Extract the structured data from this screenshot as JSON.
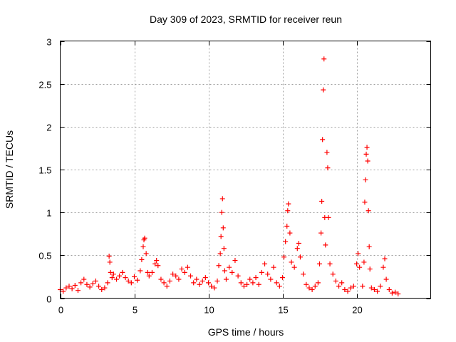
{
  "chart_data": {
    "type": "scatter",
    "title": "Day 309 of 2023, SRMTID for receiver reun",
    "xlabel": "GPS time / hours",
    "ylabel": "SRMTID / TECUs",
    "xlim": [
      0,
      25
    ],
    "ylim": [
      0,
      3
    ],
    "xticks": [
      0,
      5,
      10,
      15,
      20
    ],
    "xtick_labels": [
      "0",
      "5",
      "10",
      "15",
      "20"
    ],
    "yticks": [
      0,
      0.5,
      1,
      1.5,
      2,
      2.5,
      3
    ],
    "ytick_labels": [
      "0",
      "0.5",
      "1",
      "1.5",
      "2",
      "2.5",
      "3"
    ],
    "grid": true,
    "marker": "+",
    "marker_color": "#ff0000",
    "series": [
      {
        "name": "SRMTID",
        "points": [
          [
            0.0,
            0.1
          ],
          [
            0.2,
            0.08
          ],
          [
            0.4,
            0.12
          ],
          [
            0.6,
            0.14
          ],
          [
            0.8,
            0.11
          ],
          [
            1.0,
            0.15
          ],
          [
            1.2,
            0.09
          ],
          [
            1.4,
            0.18
          ],
          [
            1.6,
            0.22
          ],
          [
            1.8,
            0.16
          ],
          [
            2.0,
            0.13
          ],
          [
            2.2,
            0.17
          ],
          [
            2.4,
            0.2
          ],
          [
            2.6,
            0.14
          ],
          [
            2.8,
            0.1
          ],
          [
            3.0,
            0.12
          ],
          [
            3.2,
            0.18
          ],
          [
            3.3,
            0.49
          ],
          [
            3.35,
            0.42
          ],
          [
            3.4,
            0.3
          ],
          [
            3.5,
            0.24
          ],
          [
            3.6,
            0.28
          ],
          [
            3.8,
            0.22
          ],
          [
            4.0,
            0.26
          ],
          [
            4.2,
            0.3
          ],
          [
            4.4,
            0.24
          ],
          [
            4.6,
            0.2
          ],
          [
            4.8,
            0.18
          ],
          [
            5.0,
            0.25
          ],
          [
            5.2,
            0.21
          ],
          [
            5.4,
            0.32
          ],
          [
            5.5,
            0.45
          ],
          [
            5.6,
            0.6
          ],
          [
            5.65,
            0.68
          ],
          [
            5.7,
            0.7
          ],
          [
            5.8,
            0.52
          ],
          [
            5.9,
            0.3
          ],
          [
            6.0,
            0.26
          ],
          [
            6.2,
            0.3
          ],
          [
            6.4,
            0.4
          ],
          [
            6.5,
            0.44
          ],
          [
            6.6,
            0.38
          ],
          [
            6.8,
            0.22
          ],
          [
            7.0,
            0.18
          ],
          [
            7.2,
            0.14
          ],
          [
            7.4,
            0.2
          ],
          [
            7.6,
            0.28
          ],
          [
            7.8,
            0.26
          ],
          [
            8.0,
            0.22
          ],
          [
            8.2,
            0.34
          ],
          [
            8.4,
            0.3
          ],
          [
            8.6,
            0.36
          ],
          [
            8.8,
            0.26
          ],
          [
            9.0,
            0.18
          ],
          [
            9.2,
            0.22
          ],
          [
            9.4,
            0.16
          ],
          [
            9.6,
            0.2
          ],
          [
            9.8,
            0.24
          ],
          [
            10.0,
            0.18
          ],
          [
            10.2,
            0.14
          ],
          [
            10.4,
            0.12
          ],
          [
            10.6,
            0.2
          ],
          [
            10.7,
            0.38
          ],
          [
            10.8,
            0.52
          ],
          [
            10.85,
            0.72
          ],
          [
            10.9,
            1.0
          ],
          [
            10.95,
            1.16
          ],
          [
            11.0,
            0.82
          ],
          [
            11.05,
            0.58
          ],
          [
            11.1,
            0.32
          ],
          [
            11.2,
            0.22
          ],
          [
            11.4,
            0.36
          ],
          [
            11.6,
            0.3
          ],
          [
            11.8,
            0.44
          ],
          [
            12.0,
            0.26
          ],
          [
            12.2,
            0.18
          ],
          [
            12.4,
            0.14
          ],
          [
            12.6,
            0.16
          ],
          [
            12.8,
            0.22
          ],
          [
            13.0,
            0.18
          ],
          [
            13.2,
            0.24
          ],
          [
            13.4,
            0.16
          ],
          [
            13.6,
            0.3
          ],
          [
            13.8,
            0.4
          ],
          [
            14.0,
            0.28
          ],
          [
            14.2,
            0.22
          ],
          [
            14.4,
            0.36
          ],
          [
            14.6,
            0.18
          ],
          [
            14.8,
            0.14
          ],
          [
            15.0,
            0.24
          ],
          [
            15.1,
            0.48
          ],
          [
            15.2,
            0.66
          ],
          [
            15.3,
            0.84
          ],
          [
            15.35,
            1.02
          ],
          [
            15.4,
            1.1
          ],
          [
            15.5,
            0.76
          ],
          [
            15.6,
            0.42
          ],
          [
            15.8,
            0.36
          ],
          [
            16.0,
            0.58
          ],
          [
            16.1,
            0.64
          ],
          [
            16.2,
            0.48
          ],
          [
            16.4,
            0.28
          ],
          [
            16.6,
            0.16
          ],
          [
            16.8,
            0.12
          ],
          [
            17.0,
            0.1
          ],
          [
            17.2,
            0.14
          ],
          [
            17.4,
            0.18
          ],
          [
            17.5,
            0.4
          ],
          [
            17.6,
            0.76
          ],
          [
            17.65,
            1.13
          ],
          [
            17.7,
            1.85
          ],
          [
            17.75,
            2.43
          ],
          [
            17.8,
            2.79
          ],
          [
            17.85,
            0.94
          ],
          [
            17.9,
            0.62
          ],
          [
            18.0,
            1.7
          ],
          [
            18.05,
            1.52
          ],
          [
            18.1,
            0.94
          ],
          [
            18.2,
            0.4
          ],
          [
            18.4,
            0.28
          ],
          [
            18.6,
            0.2
          ],
          [
            18.8,
            0.14
          ],
          [
            19.0,
            0.18
          ],
          [
            19.2,
            0.1
          ],
          [
            19.4,
            0.08
          ],
          [
            19.6,
            0.12
          ],
          [
            19.8,
            0.14
          ],
          [
            20.0,
            0.4
          ],
          [
            20.1,
            0.52
          ],
          [
            20.2,
            0.36
          ],
          [
            20.4,
            0.14
          ],
          [
            20.5,
            0.42
          ],
          [
            20.55,
            1.12
          ],
          [
            20.6,
            1.38
          ],
          [
            20.65,
            1.68
          ],
          [
            20.7,
            1.76
          ],
          [
            20.75,
            1.6
          ],
          [
            20.8,
            1.02
          ],
          [
            20.85,
            0.6
          ],
          [
            20.9,
            0.34
          ],
          [
            21.0,
            0.12
          ],
          [
            21.2,
            0.1
          ],
          [
            21.4,
            0.08
          ],
          [
            21.6,
            0.14
          ],
          [
            21.8,
            0.36
          ],
          [
            21.9,
            0.46
          ],
          [
            22.0,
            0.22
          ],
          [
            22.2,
            0.1
          ],
          [
            22.4,
            0.06
          ],
          [
            22.6,
            0.07
          ],
          [
            22.8,
            0.05
          ]
        ]
      }
    ]
  }
}
